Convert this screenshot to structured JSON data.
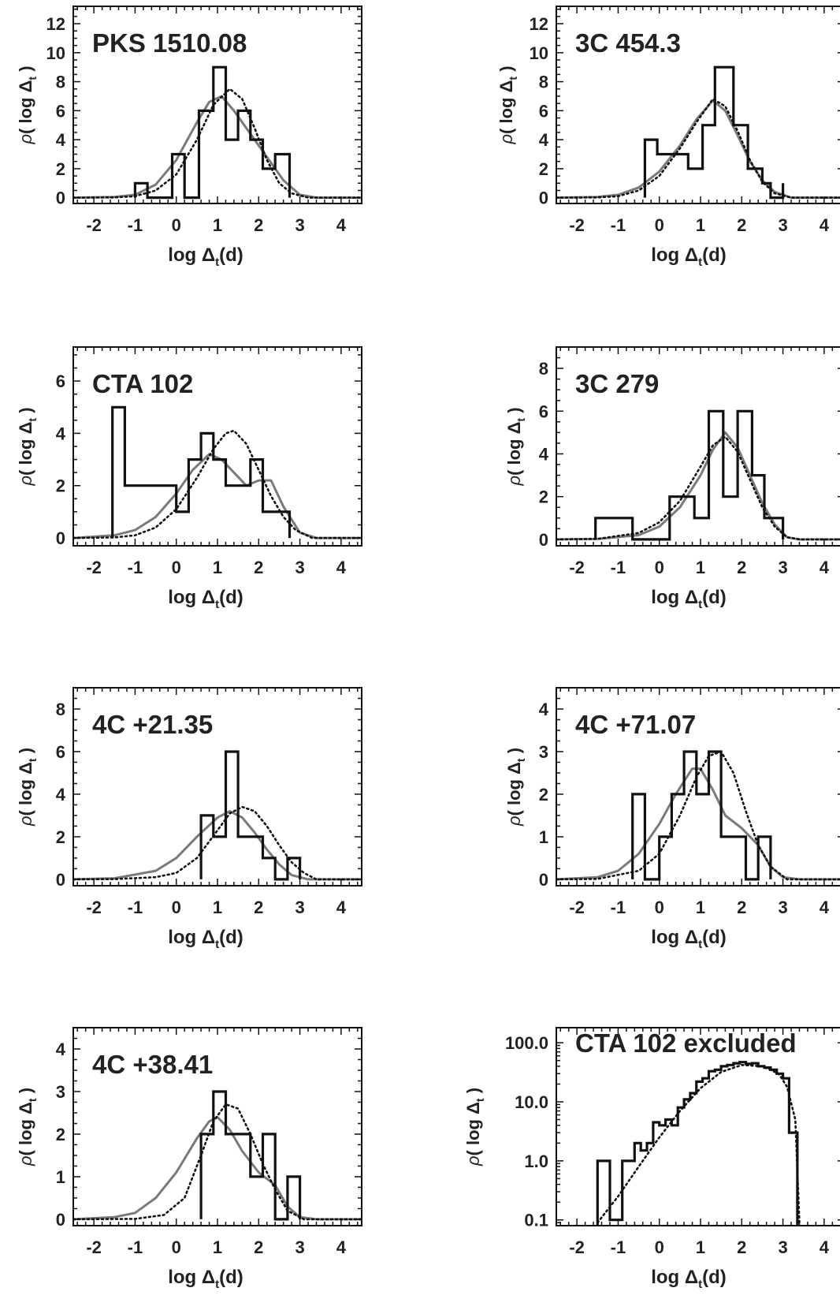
{
  "figure": {
    "xlabel": "log Δt(d)",
    "ylabel": "ρ( log Δt )"
  },
  "chart_data": [
    {
      "type": "histogram",
      "title": "PKS 1510.08",
      "xlim": [
        -2.5,
        4.5
      ],
      "ylim": [
        -0.4,
        13.2
      ],
      "xticks": [
        -2,
        -1,
        0,
        1,
        2,
        3,
        4
      ],
      "yticks": [
        0,
        2,
        4,
        6,
        8,
        10,
        12
      ],
      "histogram": {
        "edges": [
          -1.0,
          -0.7,
          -0.4,
          -0.1,
          0.2,
          0.55,
          0.9,
          1.2,
          1.5,
          1.8,
          2.1,
          2.4,
          2.75
        ],
        "counts": [
          1,
          0,
          0,
          3,
          0,
          6,
          9,
          4,
          6,
          4,
          2,
          3
        ]
      },
      "curve_solid": {
        "x": [
          -2.5,
          -1.5,
          -1.0,
          -0.5,
          0.0,
          0.5,
          0.8,
          1.1,
          1.4,
          1.7,
          2.0,
          2.3,
          2.6,
          3.0,
          3.4,
          4.5
        ],
        "y": [
          0,
          0.05,
          0.2,
          0.9,
          2.6,
          5.2,
          6.6,
          7.0,
          6.0,
          4.8,
          3.6,
          2.4,
          1.2,
          0.2,
          0,
          0
        ]
      },
      "curve_dotted": {
        "x": [
          -2.5,
          -1.5,
          -1.0,
          -0.5,
          0.0,
          0.5,
          0.9,
          1.3,
          1.6,
          1.9,
          2.2,
          2.5,
          2.8,
          3.2,
          4.5
        ],
        "y": [
          0,
          0.02,
          0.1,
          0.5,
          1.6,
          4.0,
          6.4,
          7.5,
          6.8,
          4.8,
          2.6,
          1.0,
          0.3,
          0,
          0
        ]
      }
    },
    {
      "type": "histogram",
      "title": "3C 454.3",
      "xlim": [
        -2.5,
        4.5
      ],
      "ylim": [
        -0.4,
        13.2
      ],
      "xticks": [
        -2,
        -1,
        0,
        1,
        2,
        3,
        4
      ],
      "yticks": [
        0,
        2,
        4,
        6,
        8,
        10,
        12
      ],
      "histogram": {
        "edges": [
          -0.35,
          -0.05,
          0.3,
          0.7,
          1.05,
          1.35,
          1.8,
          2.15,
          2.5,
          2.7,
          3.0
        ],
        "counts": [
          4,
          3,
          3,
          2,
          5,
          9,
          5,
          2,
          1,
          0,
          1
        ]
      },
      "curve_solid": {
        "x": [
          -2.5,
          -1.5,
          -1.0,
          -0.5,
          0.0,
          0.5,
          0.9,
          1.3,
          1.6,
          1.9,
          2.2,
          2.5,
          2.8,
          3.2,
          4.5
        ],
        "y": [
          0,
          0.05,
          0.2,
          0.7,
          1.8,
          3.6,
          5.4,
          6.7,
          6.0,
          4.3,
          2.5,
          1.2,
          0.4,
          0,
          0
        ]
      },
      "curve_dotted": {
        "x": [
          -2.5,
          -1.5,
          -1.0,
          -0.5,
          0.0,
          0.5,
          0.9,
          1.3,
          1.6,
          1.9,
          2.2,
          2.5,
          2.8,
          3.2,
          4.5
        ],
        "y": [
          0,
          0.02,
          0.1,
          0.5,
          1.5,
          3.4,
          5.2,
          6.8,
          6.3,
          4.6,
          2.6,
          1.1,
          0.3,
          0,
          0
        ]
      }
    },
    {
      "type": "histogram",
      "title": "CTA 102",
      "xlim": [
        -2.5,
        4.5
      ],
      "ylim": [
        -0.3,
        7.3
      ],
      "xticks": [
        -2,
        -1,
        0,
        1,
        2,
        3,
        4
      ],
      "yticks": [
        0,
        2,
        4,
        6
      ],
      "histogram": {
        "edges": [
          -1.55,
          -1.25,
          0.0,
          0.3,
          0.6,
          0.9,
          1.2,
          1.5,
          1.8,
          2.1,
          2.4,
          2.75
        ],
        "counts": [
          5,
          2,
          1,
          3,
          4,
          3,
          2,
          2,
          3,
          1,
          1
        ]
      },
      "curve_solid": {
        "x": [
          -2.5,
          -1.5,
          -1.0,
          -0.5,
          0.0,
          0.4,
          0.8,
          1.1,
          1.4,
          1.7,
          2.0,
          2.3,
          2.6,
          3.0,
          3.4,
          4.5
        ],
        "y": [
          0,
          0.1,
          0.3,
          0.8,
          1.7,
          2.6,
          3.2,
          3.0,
          2.5,
          2.0,
          2.2,
          2.2,
          1.2,
          0.2,
          0,
          0
        ]
      },
      "curve_dotted": {
        "x": [
          -2.5,
          -1.5,
          -1.0,
          -0.5,
          0.0,
          0.5,
          0.9,
          1.2,
          1.4,
          1.7,
          2.0,
          2.3,
          2.6,
          2.9,
          3.3,
          4.5
        ],
        "y": [
          0,
          0.02,
          0.1,
          0.4,
          1.1,
          2.3,
          3.4,
          4.0,
          4.1,
          3.6,
          2.6,
          1.6,
          0.8,
          0.3,
          0,
          0
        ]
      }
    },
    {
      "type": "histogram",
      "title": "3C 279",
      "xlim": [
        -2.5,
        4.5
      ],
      "ylim": [
        -0.3,
        9.0
      ],
      "xticks": [
        -2,
        -1,
        0,
        1,
        2,
        3,
        4
      ],
      "yticks": [
        0,
        2,
        4,
        6,
        8
      ],
      "histogram": {
        "edges": [
          -1.55,
          -0.65,
          0.25,
          0.85,
          1.2,
          1.55,
          1.9,
          2.25,
          2.55,
          3.0
        ],
        "counts": [
          1,
          0,
          2,
          1,
          6,
          2,
          6,
          3,
          1
        ]
      },
      "curve_solid": {
        "x": [
          -2.5,
          -1.5,
          -0.5,
          0.0,
          0.5,
          1.0,
          1.3,
          1.6,
          1.9,
          2.2,
          2.5,
          2.8,
          3.1,
          3.4,
          4.5
        ],
        "y": [
          0,
          0.02,
          0.2,
          0.6,
          1.5,
          3.0,
          4.2,
          5.0,
          4.3,
          3.0,
          1.7,
          0.7,
          0.1,
          0,
          0
        ]
      },
      "curve_dotted": {
        "x": [
          -2.5,
          -1.5,
          -0.5,
          0.0,
          0.5,
          1.0,
          1.3,
          1.6,
          1.9,
          2.2,
          2.5,
          2.8,
          3.1,
          3.4,
          4.5
        ],
        "y": [
          0,
          0.02,
          0.3,
          0.8,
          1.8,
          3.4,
          4.4,
          4.8,
          4.1,
          2.8,
          1.5,
          0.6,
          0.1,
          0,
          0
        ]
      }
    },
    {
      "type": "histogram",
      "title": "4C +21.35",
      "xlim": [
        -2.5,
        4.5
      ],
      "ylim": [
        -0.3,
        9.0
      ],
      "xticks": [
        -2,
        -1,
        0,
        1,
        2,
        3,
        4
      ],
      "yticks": [
        0,
        2,
        4,
        6,
        8
      ],
      "histogram": {
        "edges": [
          0.6,
          0.9,
          1.2,
          1.5,
          2.1,
          2.4,
          2.7,
          3.0
        ],
        "counts": [
          3,
          2,
          6,
          2,
          1,
          0,
          1
        ]
      },
      "curve_solid": {
        "x": [
          -2.5,
          -1.5,
          -0.5,
          0.0,
          0.5,
          1.0,
          1.3,
          1.6,
          1.9,
          2.2,
          2.5,
          2.8,
          3.2,
          4.5
        ],
        "y": [
          0,
          0.05,
          0.4,
          1.0,
          2.0,
          2.9,
          3.2,
          2.9,
          2.2,
          1.4,
          0.7,
          0.2,
          0,
          0
        ]
      },
      "curve_dotted": {
        "x": [
          -2.5,
          -1.5,
          -0.5,
          0.0,
          0.5,
          1.0,
          1.3,
          1.6,
          1.9,
          2.2,
          2.5,
          2.8,
          3.1,
          3.4,
          4.5
        ],
        "y": [
          0,
          0.01,
          0.1,
          0.3,
          1.0,
          2.3,
          3.1,
          3.4,
          3.2,
          2.5,
          1.6,
          0.8,
          0.3,
          0,
          0
        ]
      }
    },
    {
      "type": "histogram",
      "title": "4C +71.07",
      "xlim": [
        -2.5,
        4.5
      ],
      "ylim": [
        -0.15,
        4.5
      ],
      "xticks": [
        -2,
        -1,
        0,
        1,
        2,
        3,
        4
      ],
      "yticks": [
        0,
        1,
        2,
        3,
        4
      ],
      "histogram": {
        "edges": [
          -0.65,
          -0.35,
          0.0,
          0.3,
          0.6,
          0.9,
          1.2,
          1.5,
          2.1,
          2.4,
          2.7
        ],
        "counts": [
          2,
          0,
          1,
          2,
          3,
          2,
          3,
          1,
          0,
          1
        ]
      },
      "curve_solid": {
        "x": [
          -2.5,
          -1.5,
          -1.0,
          -0.5,
          0.0,
          0.4,
          0.8,
          1.0,
          1.3,
          1.6,
          2.0,
          2.4,
          2.7,
          3.0,
          3.4,
          4.5
        ],
        "y": [
          0,
          0.05,
          0.2,
          0.6,
          1.3,
          2.0,
          2.6,
          2.6,
          2.1,
          1.5,
          1.2,
          0.8,
          0.3,
          0.05,
          0,
          0
        ]
      },
      "curve_dotted": {
        "x": [
          -2.5,
          -1.5,
          -0.5,
          0.0,
          0.5,
          0.9,
          1.2,
          1.5,
          1.8,
          2.1,
          2.4,
          2.7,
          3.1,
          4.5
        ],
        "y": [
          0,
          0.01,
          0.2,
          0.6,
          1.5,
          2.4,
          2.9,
          3.0,
          2.5,
          1.6,
          0.8,
          0.3,
          0,
          0
        ]
      }
    },
    {
      "type": "histogram",
      "title": "4C +38.41",
      "xlim": [
        -2.5,
        4.5
      ],
      "ylim": [
        -0.15,
        4.5
      ],
      "xticks": [
        -2,
        -1,
        0,
        1,
        2,
        3,
        4
      ],
      "yticks": [
        0,
        1,
        2,
        3,
        4
      ],
      "histogram": {
        "edges": [
          0.6,
          0.9,
          1.2,
          1.5,
          1.8,
          2.1,
          2.4,
          2.7,
          3.0
        ],
        "counts": [
          2,
          3,
          2,
          2,
          1,
          2,
          0,
          1
        ]
      },
      "curve_solid": {
        "x": [
          -2.5,
          -1.5,
          -1.0,
          -0.5,
          0.0,
          0.5,
          0.8,
          1.0,
          1.3,
          1.6,
          2.0,
          2.4,
          2.7,
          3.0,
          3.4,
          4.5
        ],
        "y": [
          0,
          0.05,
          0.15,
          0.5,
          1.1,
          1.9,
          2.3,
          2.4,
          2.1,
          1.6,
          1.1,
          0.8,
          0.3,
          0.05,
          0,
          0
        ]
      },
      "curve_dotted": {
        "x": [
          -2.5,
          -1.0,
          -0.3,
          0.2,
          0.6,
          0.9,
          1.2,
          1.5,
          1.8,
          2.1,
          2.4,
          2.7,
          3.1,
          4.5
        ],
        "y": [
          0,
          0.01,
          0.1,
          0.5,
          1.5,
          2.3,
          2.7,
          2.6,
          2.0,
          1.3,
          0.7,
          0.2,
          0,
          0
        ]
      }
    },
    {
      "type": "histogram",
      "title": "CTA 102 excluded",
      "yscale": "log",
      "xlim": [
        -2.5,
        4.5
      ],
      "ylim": [
        0.08,
        180
      ],
      "xticks": [
        -2,
        -1,
        0,
        1,
        2,
        3,
        4
      ],
      "yticks": [
        0.1,
        1.0,
        10.0,
        100.0
      ],
      "ytick_labels": [
        "0.1",
        "1.0",
        "10.0",
        "100.0"
      ],
      "histogram": {
        "edges": [
          -1.5,
          -1.2,
          -0.9,
          -0.6,
          -0.45,
          -0.3,
          -0.15,
          0.0,
          0.15,
          0.3,
          0.45,
          0.6,
          0.75,
          0.9,
          1.05,
          1.2,
          1.35,
          1.5,
          1.65,
          1.8,
          1.95,
          2.1,
          2.25,
          2.4,
          2.55,
          2.7,
          2.85,
          3.0,
          3.15,
          3.35
        ],
        "counts": [
          1,
          0.1,
          1,
          2,
          1.5,
          2,
          4.5,
          4,
          5,
          4,
          8,
          11,
          14,
          22,
          25,
          33,
          35,
          40,
          42,
          45,
          47,
          44,
          45,
          40,
          38,
          35,
          30,
          25,
          3
        ]
      },
      "curve_dotted": {
        "x": [
          -1.5,
          -1.0,
          -0.5,
          0.0,
          0.5,
          1.0,
          1.5,
          2.0,
          2.5,
          2.9,
          3.1,
          3.3,
          3.4
        ],
        "y": [
          0.09,
          0.25,
          0.8,
          2.5,
          7.0,
          17,
          32,
          42,
          40,
          30,
          18,
          5,
          0.09
        ]
      }
    }
  ]
}
